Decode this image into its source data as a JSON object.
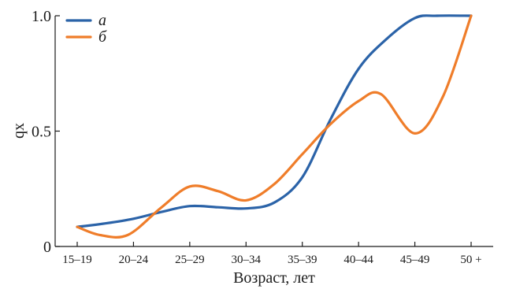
{
  "chart_data": {
    "type": "line",
    "title": "",
    "xlabel": "Возраст, лет",
    "ylabel": "qx",
    "categories": [
      "15–19",
      "20–24",
      "25–29",
      "30–34",
      "35–39",
      "40–44",
      "45–49",
      "50 +"
    ],
    "ylim": [
      0,
      1
    ],
    "yticks": [
      {
        "value": 0,
        "label": "0"
      },
      {
        "value": 0.5,
        "label": "0.5"
      },
      {
        "value": 1.0,
        "label": "1.0"
      }
    ],
    "grid": false,
    "legend_position": "top-left",
    "series": [
      {
        "name": "а",
        "color": "#2b63a8",
        "x": [
          0,
          0.5,
          1,
          1.5,
          2,
          2.5,
          3,
          3.5,
          4,
          4.5,
          5,
          5.5,
          6,
          6.4,
          7
        ],
        "values": [
          0.085,
          0.1,
          0.12,
          0.15,
          0.175,
          0.17,
          0.165,
          0.19,
          0.3,
          0.55,
          0.77,
          0.9,
          0.99,
          1.0,
          1.0
        ]
      },
      {
        "name": "б",
        "color": "#ef7d2a",
        "x": [
          0,
          0.4,
          0.9,
          1.5,
          2,
          2.5,
          3,
          3.5,
          4,
          4.5,
          5,
          5.4,
          6,
          6.5,
          7
        ],
        "values": [
          0.085,
          0.05,
          0.05,
          0.17,
          0.26,
          0.24,
          0.2,
          0.27,
          0.4,
          0.53,
          0.63,
          0.66,
          0.49,
          0.65,
          1.0
        ]
      }
    ]
  }
}
